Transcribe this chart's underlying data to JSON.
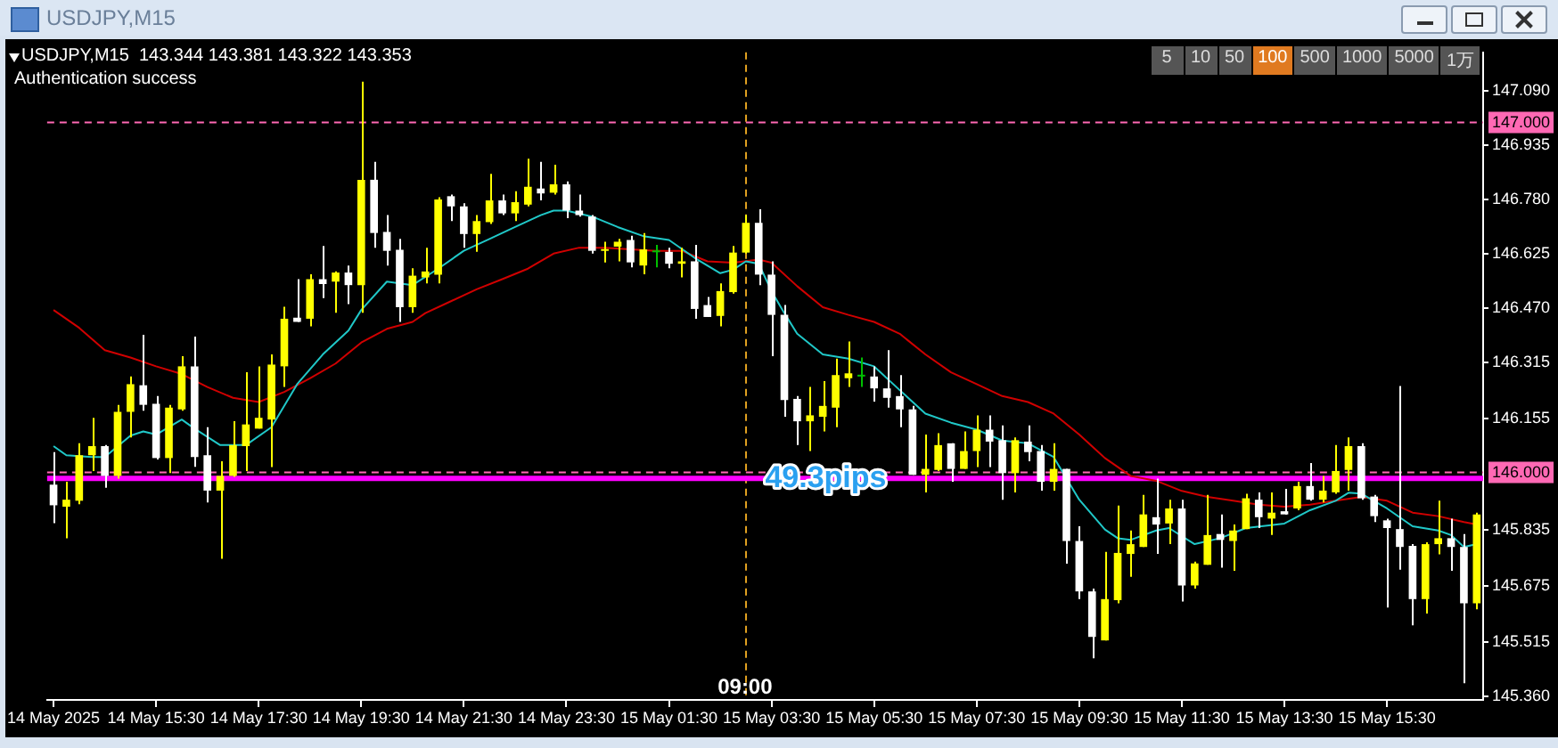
{
  "chart_data": {
    "type": "candlestick",
    "title": "USDJPY,M15",
    "annotations": [
      "USDJPY,M15  143.344 143.381 143.322 143.353",
      "Authentication success",
      "09:00",
      "5",
      "10",
      "50",
      "100",
      "500",
      "1000",
      "5000",
      "1万"
    ],
    "categories": [
      "14 May 2025",
      null,
      null,
      null,
      null,
      null,
      null,
      null,
      "14 May 15:30",
      null,
      null,
      null,
      null,
      null,
      null,
      null,
      "14 May 17:30",
      null,
      null,
      null,
      null,
      null,
      null,
      null,
      "14 May 19:30",
      null,
      null,
      null,
      null,
      null,
      null,
      null,
      "14 May 21:30",
      null,
      null,
      null,
      null,
      null,
      null,
      null,
      "14 May 23:30",
      null,
      null,
      null,
      null,
      null,
      null,
      null,
      "15 May 01:30",
      null,
      null,
      null,
      null,
      null,
      null,
      null,
      "15 May 03:30",
      null,
      null,
      null,
      null,
      null,
      null,
      null,
      "15 May 05:30",
      null,
      null,
      null,
      null,
      null,
      null,
      null,
      "15 May 07:30",
      null,
      null,
      null,
      null,
      null,
      null,
      null,
      "15 May 09:30",
      null,
      null,
      null,
      null,
      null,
      null,
      null,
      "15 May 11:30",
      null,
      null,
      null,
      null,
      null,
      null,
      null,
      "15 May 13:30",
      null,
      null,
      null,
      null,
      null,
      null,
      null,
      "15 May 15:30",
      null,
      null,
      null,
      null,
      null,
      null,
      null
    ],
    "ohlc": [
      [
        145.965,
        146.058,
        145.855,
        145.906
      ],
      [
        145.902,
        145.973,
        145.812,
        145.922
      ],
      [
        145.919,
        146.083,
        145.909,
        146.049
      ],
      [
        146.049,
        146.156,
        146.004,
        146.075
      ],
      [
        146.075,
        146.078,
        145.956,
        145.99
      ],
      [
        145.99,
        146.193,
        145.982,
        146.173
      ],
      [
        146.173,
        146.274,
        146.1,
        146.252
      ],
      [
        146.249,
        146.393,
        146.176,
        146.193
      ],
      [
        146.196,
        146.218,
        146.037,
        146.041
      ],
      [
        146.041,
        146.193,
        145.998,
        146.185
      ],
      [
        146.18,
        146.332,
        146.176,
        146.303
      ],
      [
        146.303,
        146.388,
        146.016,
        146.044
      ],
      [
        146.049,
        146.129,
        145.914,
        145.948
      ],
      [
        145.948,
        146.032,
        145.753,
        145.99
      ],
      [
        145.99,
        146.146,
        145.987,
        146.078
      ],
      [
        146.075,
        146.286,
        146.004,
        146.137
      ],
      [
        146.125,
        146.303,
        146.125,
        146.156
      ],
      [
        146.151,
        146.337,
        146.015,
        146.308
      ],
      [
        146.303,
        146.473,
        146.244,
        146.439
      ],
      [
        146.442,
        146.552,
        146.43,
        146.43
      ],
      [
        146.439,
        146.566,
        146.417,
        146.552
      ],
      [
        146.552,
        146.647,
        146.498,
        146.538
      ],
      [
        146.545,
        146.574,
        146.456,
        146.571
      ],
      [
        146.571,
        146.591,
        146.481,
        146.535
      ],
      [
        146.535,
        147.116,
        146.456,
        146.836
      ],
      [
        146.836,
        146.887,
        146.642,
        146.684
      ],
      [
        146.687,
        146.735,
        146.591,
        146.633
      ],
      [
        146.636,
        146.667,
        146.43,
        146.472
      ],
      [
        146.472,
        146.583,
        146.456,
        146.562
      ],
      [
        146.557,
        146.642,
        146.54,
        146.574
      ],
      [
        146.565,
        146.786,
        146.54,
        146.78
      ],
      [
        146.789,
        146.794,
        146.718,
        146.76
      ],
      [
        146.76,
        146.769,
        146.642,
        146.681
      ],
      [
        146.681,
        146.735,
        146.63,
        146.718
      ],
      [
        146.715,
        146.853,
        146.71,
        146.777
      ],
      [
        146.777,
        146.794,
        146.735,
        146.74
      ],
      [
        146.74,
        146.803,
        146.718,
        146.772
      ],
      [
        146.765,
        146.896,
        146.76,
        146.816
      ],
      [
        146.811,
        146.887,
        146.777,
        146.797
      ],
      [
        146.799,
        146.879,
        146.794,
        146.823
      ],
      [
        146.823,
        146.831,
        146.726,
        146.748
      ],
      [
        146.748,
        146.794,
        146.731,
        146.735
      ],
      [
        146.731,
        146.735,
        146.625,
        146.633
      ],
      [
        146.633,
        146.659,
        146.6,
        146.638
      ],
      [
        146.645,
        146.667,
        146.603,
        146.659
      ],
      [
        146.664,
        146.676,
        146.586,
        146.6
      ],
      [
        146.591,
        146.684,
        146.566,
        146.637
      ],
      [
        146.633,
        146.65,
        146.586,
        146.634
      ],
      [
        146.63,
        146.642,
        146.583,
        146.596
      ],
      [
        146.596,
        146.642,
        146.557,
        146.603
      ],
      [
        146.603,
        146.65,
        146.439,
        146.467
      ],
      [
        146.478,
        146.501,
        146.444,
        146.444
      ],
      [
        146.447,
        146.54,
        146.417,
        146.518
      ],
      [
        146.515,
        146.647,
        146.511,
        146.628
      ],
      [
        146.628,
        146.735,
        146.625,
        146.713
      ],
      [
        146.713,
        146.752,
        146.535,
        146.565
      ],
      [
        146.565,
        146.603,
        146.332,
        146.45
      ],
      [
        146.45,
        146.478,
        146.159,
        146.207
      ],
      [
        146.21,
        146.218,
        146.078,
        146.146
      ],
      [
        146.146,
        146.244,
        146.061,
        146.163
      ],
      [
        146.159,
        146.261,
        146.117,
        146.19
      ],
      [
        146.185,
        146.325,
        146.129,
        146.278
      ],
      [
        146.269,
        146.374,
        146.244,
        146.283
      ],
      [
        146.278,
        146.328,
        146.244,
        146.279
      ],
      [
        146.274,
        146.303,
        146.202,
        146.24
      ],
      [
        146.24,
        146.349,
        146.185,
        146.213
      ],
      [
        146.218,
        146.278,
        146.129,
        146.18
      ],
      [
        146.18,
        146.19,
        145.993,
        145.993
      ],
      [
        145.993,
        146.108,
        145.943,
        146.01
      ],
      [
        146.007,
        146.112,
        146.004,
        146.078
      ],
      [
        146.083,
        146.083,
        145.973,
        146.01
      ],
      [
        146.01,
        146.117,
        146.01,
        146.061
      ],
      [
        146.061,
        146.163,
        146.015,
        146.122
      ],
      [
        146.122,
        146.163,
        146.015,
        146.088
      ],
      [
        146.092,
        146.134,
        145.922,
        145.998
      ],
      [
        145.998,
        146.1,
        145.943,
        146.092
      ],
      [
        146.088,
        146.134,
        146.032,
        146.058
      ],
      [
        146.061,
        146.078,
        145.948,
        145.973
      ],
      [
        145.973,
        146.083,
        145.948,
        146.01
      ],
      [
        146.01,
        146.01,
        145.739,
        145.804
      ],
      [
        145.804,
        145.846,
        145.638,
        145.66
      ],
      [
        145.66,
        145.668,
        145.469,
        145.53
      ],
      [
        145.52,
        145.773,
        145.52,
        145.638
      ],
      [
        145.635,
        145.905,
        145.626,
        145.77
      ],
      [
        145.767,
        145.834,
        145.702,
        145.795
      ],
      [
        145.787,
        145.936,
        145.787,
        145.88
      ],
      [
        145.872,
        145.982,
        145.767,
        145.851
      ],
      [
        145.854,
        145.922,
        145.795,
        145.897
      ],
      [
        145.897,
        145.922,
        145.631,
        145.677
      ],
      [
        145.677,
        145.745,
        145.668,
        145.74
      ],
      [
        145.736,
        145.936,
        145.736,
        145.821
      ],
      [
        145.824,
        145.88,
        145.728,
        145.807
      ],
      [
        145.804,
        145.851,
        145.719,
        145.834
      ],
      [
        145.838,
        145.939,
        145.838,
        145.926
      ],
      [
        145.922,
        145.943,
        145.841,
        145.872
      ],
      [
        145.868,
        145.943,
        145.821,
        145.885
      ],
      [
        145.889,
        145.953,
        145.88,
        145.88
      ],
      [
        145.897,
        145.973,
        145.892,
        145.961
      ],
      [
        145.961,
        146.027,
        145.919,
        145.922
      ],
      [
        145.922,
        145.99,
        145.914,
        145.948
      ],
      [
        145.943,
        146.078,
        145.939,
        146.004
      ],
      [
        146.007,
        146.1,
        145.948,
        146.075
      ],
      [
        146.075,
        146.083,
        145.922,
        145.926
      ],
      [
        145.931,
        145.936,
        145.858,
        145.875
      ],
      [
        145.863,
        145.868,
        145.614,
        145.841
      ],
      [
        145.838,
        146.247,
        145.722,
        145.787
      ],
      [
        145.79,
        145.795,
        145.563,
        145.638
      ],
      [
        145.638,
        145.8,
        145.597,
        145.795
      ],
      [
        145.795,
        145.919,
        145.766,
        145.812
      ],
      [
        145.812,
        145.868,
        145.719,
        145.787
      ],
      [
        145.787,
        145.824,
        145.398,
        145.626
      ],
      [
        145.626,
        145.885,
        145.609,
        145.88
      ]
    ],
    "colors": [
      "#ffffff",
      "#ffff00",
      "#ffff00",
      "#ffff00",
      "#ffffff",
      "#ffff00",
      "#ffff00",
      "#ffffff",
      "#ffffff",
      "#ffff00",
      "#ffff00",
      "#ffffff",
      "#ffffff",
      "#ffff00",
      "#ffff00",
      "#ffff00",
      "#ffff00",
      "#ffff00",
      "#ffff00",
      "#ffffff",
      "#ffff00",
      "#ffffff",
      "#ffff00",
      "#ffffff",
      "#ffff00",
      "#ffffff",
      "#ffffff",
      "#ffffff",
      "#ffff00",
      "#ffff00",
      "#ffff00",
      "#ffffff",
      "#ffffff",
      "#ffff00",
      "#ffff00",
      "#ffffff",
      "#ffff00",
      "#ffff00",
      "#ffffff",
      "#ffff00",
      "#ffffff",
      "#ffffff",
      "#ffffff",
      "#ffff00",
      "#ffff00",
      "#ffffff",
      "#ffff00",
      "#00c000",
      "#ffffff",
      "#ffff00",
      "#ffffff",
      "#ffffff",
      "#ffff00",
      "#ffff00",
      "#ffff00",
      "#ffffff",
      "#ffffff",
      "#ffffff",
      "#ffffff",
      "#ffff00",
      "#ffff00",
      "#ffff00",
      "#ffff00",
      "#00c000",
      "#ffffff",
      "#ffffff",
      "#ffffff",
      "#ffffff",
      "#ffff00",
      "#ffff00",
      "#ffffff",
      "#ffff00",
      "#ffff00",
      "#ffffff",
      "#ffffff",
      "#ffff00",
      "#ffffff",
      "#ffffff",
      "#ffff00",
      "#ffffff",
      "#ffffff",
      "#ffffff",
      "#ffff00",
      "#ffff00",
      "#ffff00",
      "#ffff00",
      "#ffffff",
      "#ffff00",
      "#ffffff",
      "#ffff00",
      "#ffff00",
      "#ffffff",
      "#ffff00",
      "#ffff00",
      "#ffffff",
      "#ffff00",
      "#ffffff",
      "#ffff00",
      "#ffffff",
      "#ffff00",
      "#ffff00",
      "#ffff00",
      "#ffffff",
      "#ffffff",
      "#ffffff",
      "#ffffff",
      "#ffffff",
      "#ffff00",
      "#ffff00",
      "#ffffff",
      "#ffffff",
      "#ffff00"
    ],
    "series": [
      {
        "type": "line",
        "color": "#20c8c8",
        "values": [
          146.075,
          146.049,
          null,
          146.044,
          146.044,
          null,
          146.105,
          146.117,
          146.108,
          null,
          146.151,
          146.125,
          null,
          146.078,
          null,
          146.078,
          null,
          146.129,
          null,
          146.252,
          null,
          146.337,
          null,
          146.405,
          146.464,
          null,
          146.545,
          null,
          146.535,
          null,
          146.582,
          null,
          146.633,
          null,
          146.667,
          null,
          146.701,
          null,
          146.735,
          146.748,
          146.748,
          null,
          146.731,
          null,
          146.701,
          null,
          146.675,
          null,
          146.664,
          null,
          146.613,
          null,
          146.569,
          146.579,
          146.603,
          146.596,
          146.518,
          146.455,
          146.396,
          null,
          146.337,
          null,
          146.325,
          null,
          146.303,
          null,
          146.235,
          null,
          146.168,
          null,
          146.142,
          null,
          146.122,
          null,
          146.091,
          null,
          146.083,
          null,
          146.044,
          null,
          145.922,
          null,
          145.837,
          145.812,
          145.807,
          null,
          145.834,
          145.841,
          null,
          145.795,
          null,
          145.812,
          null,
          145.841,
          null,
          null,
          145.854,
          null,
          145.892,
          null,
          145.919,
          145.942,
          145.939,
          null,
          145.897,
          null,
          145.846,
          null,
          145.834,
          145.821,
          145.787,
          145.795
        ]
      },
      {
        "type": "line",
        "color": "#d00000",
        "values": [
          146.464,
          null,
          146.413,
          null,
          146.349,
          null,
          146.328,
          null,
          146.303,
          null,
          146.281,
          null,
          146.244,
          null,
          146.213,
          null,
          146.201,
          null,
          146.23,
          null,
          146.269,
          null,
          146.311,
          null,
          146.371,
          null,
          146.41,
          null,
          146.43,
          146.455,
          null,
          146.489,
          null,
          146.523,
          null,
          146.552,
          null,
          146.582,
          null,
          146.625,
          null,
          146.642,
          null,
          146.642,
          null,
          146.637,
          null,
          146.633,
          null,
          146.633,
          null,
          146.603,
          null,
          146.599,
          null,
          146.608,
          146.599,
          null,
          146.532,
          null,
          146.472,
          null,
          146.45,
          null,
          146.43,
          null,
          146.396,
          null,
          146.337,
          null,
          146.286,
          null,
          146.252,
          null,
          146.218,
          null,
          146.201,
          null,
          146.168,
          null,
          146.108,
          null,
          146.041,
          null,
          145.99,
          null,
          145.976,
          null,
          145.947,
          null,
          145.93,
          null,
          145.919,
          null,
          145.908,
          null,
          145.902,
          null,
          145.908,
          null,
          145.919,
          null,
          145.93,
          null,
          145.919,
          null,
          145.885,
          null,
          145.875,
          null,
          145.858,
          145.851
        ]
      }
    ],
    "ylim": [
      145.35,
      147.2
    ],
    "yticks": [
      {
        "value": 147.09,
        "label": "147.090"
      },
      146.935,
      {
        "value": 146.78,
        "label": "146.780"
      },
      146.625,
      {
        "value": 146.47,
        "label": "146.470"
      },
      146.315,
      146.155,
      145.835,
      145.675,
      145.515,
      {
        "value": 145.36,
        "label": "145.360"
      }
    ],
    "ref_lines": [
      {
        "axis": "y",
        "value": 147.0,
        "label": "147.000",
        "color": "#ff69b4",
        "line_style": "dashed"
      },
      {
        "axis": "y",
        "value": 146.0,
        "label": "146.000",
        "color": "#ff69b4",
        "line_style": "dashed"
      },
      {
        "axis": "y",
        "value": 145.983,
        "label": "49.3pips",
        "color": "#ff00ff",
        "line_style": "solid"
      }
    ],
    "legend": false
  }
}
